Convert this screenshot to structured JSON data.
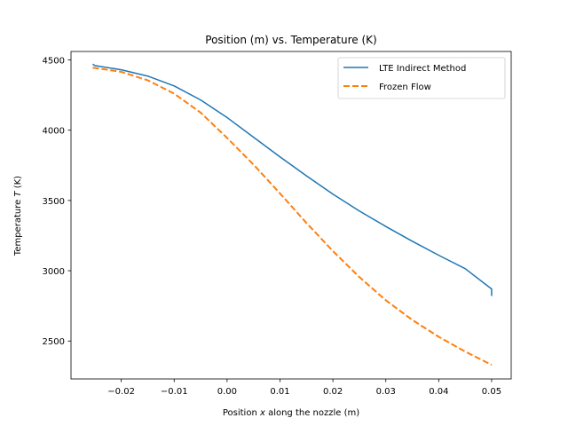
{
  "chart_data": {
    "type": "line",
    "title": "Position (m) vs. Temperature (K)",
    "xlabel_prefix": "Position ",
    "xlabel_var": "x",
    "xlabel_suffix": " along the nozzle (m)",
    "ylabel_prefix": "Temperature ",
    "ylabel_var": "T",
    "ylabel_suffix": " (K)",
    "xlim": [
      -0.0295,
      0.0537
    ],
    "ylim": [
      2230,
      4560
    ],
    "xticks": [
      -0.02,
      -0.01,
      0.0,
      0.01,
      0.02,
      0.03,
      0.04,
      0.05
    ],
    "xtick_labels": [
      "−0.02",
      "−0.01",
      "0.00",
      "0.01",
      "0.02",
      "0.03",
      "0.04",
      "0.05"
    ],
    "yticks": [
      2500,
      3000,
      3500,
      4000,
      4500
    ],
    "ytick_labels": [
      "2500",
      "3000",
      "3500",
      "4000",
      "4500"
    ],
    "grid": false,
    "legend_position": "top-right",
    "series": [
      {
        "name": "LTE Indirect Method",
        "color": "#1f77b4",
        "style": "solid",
        "x": [
          -0.0254,
          -0.025,
          -0.02,
          -0.015,
          -0.01,
          -0.005,
          0.0,
          0.005,
          0.01,
          0.015,
          0.02,
          0.025,
          0.03,
          0.035,
          0.04,
          0.045,
          0.05,
          0.05
        ],
        "y": [
          4470,
          4460,
          4430,
          4385,
          4315,
          4215,
          4090,
          3950,
          3810,
          3675,
          3545,
          3425,
          3315,
          3210,
          3110,
          3015,
          2870,
          2820
        ]
      },
      {
        "name": "Frozen Flow",
        "color": "#ff7f0e",
        "style": "dashed",
        "x": [
          -0.0254,
          -0.02,
          -0.015,
          -0.01,
          -0.005,
          0.0,
          0.005,
          0.01,
          0.015,
          0.02,
          0.025,
          0.03,
          0.035,
          0.04,
          0.045,
          0.05
        ],
        "y": [
          4445,
          4415,
          4355,
          4260,
          4125,
          3945,
          3755,
          3550,
          3340,
          3140,
          2955,
          2790,
          2650,
          2530,
          2425,
          2330
        ]
      }
    ]
  }
}
